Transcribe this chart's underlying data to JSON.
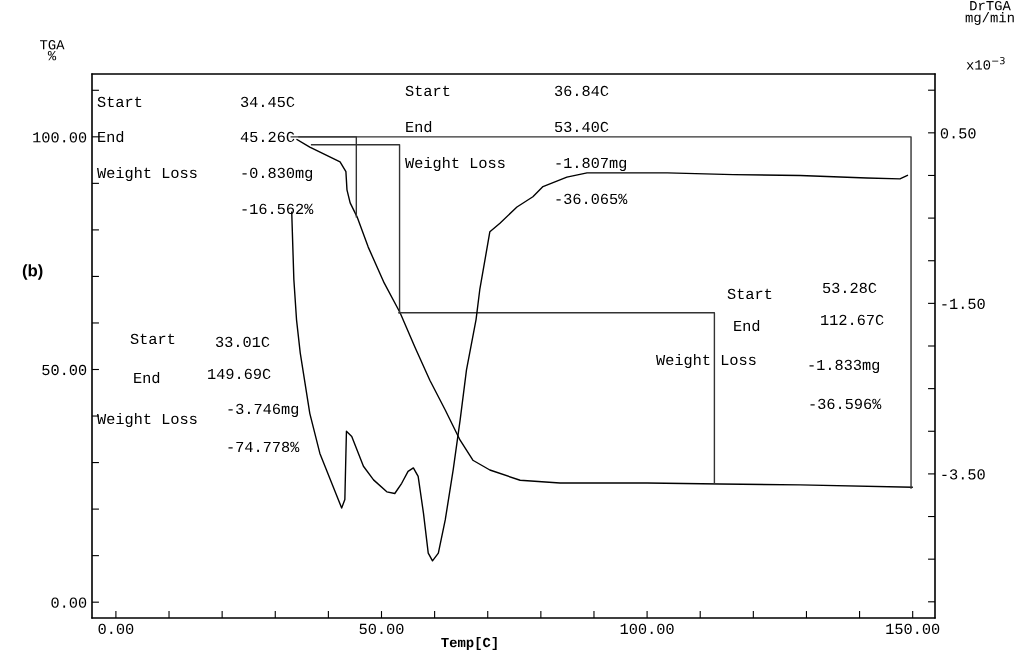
{
  "chart_data": {
    "type": "line",
    "xlabel": "Temp[C]",
    "ylabel": "TGA\n%",
    "y2label": "DrTGA\nmg/min",
    "xlim": [
      -4.5,
      154.2
    ],
    "ylim": [
      -3.4,
      113.5
    ],
    "y2lim": [
      -5.19,
      1.19
    ],
    "xticks": [
      {
        "value": 0,
        "label": "0.00"
      },
      {
        "value": 10,
        "label": null
      },
      {
        "value": 20,
        "label": null
      },
      {
        "value": 30,
        "label": null
      },
      {
        "value": 40,
        "label": null
      },
      {
        "value": 50,
        "label": "50.00"
      },
      {
        "value": 60,
        "label": null
      },
      {
        "value": 70,
        "label": null
      },
      {
        "value": 80,
        "label": null
      },
      {
        "value": 90,
        "label": null
      },
      {
        "value": 100,
        "label": "100.00"
      },
      {
        "value": 110,
        "label": null
      },
      {
        "value": 120,
        "label": null
      },
      {
        "value": 130,
        "label": null
      },
      {
        "value": 140,
        "label": null
      },
      {
        "value": 150,
        "label": "150.00"
      }
    ],
    "yticks": [
      {
        "value": 0,
        "label": "0.00"
      },
      {
        "value": 10,
        "label": null
      },
      {
        "value": 20,
        "label": null
      },
      {
        "value": 30,
        "label": null
      },
      {
        "value": 40,
        "label": null
      },
      {
        "value": 50,
        "label": "50.00"
      },
      {
        "value": 60,
        "label": null
      },
      {
        "value": 70,
        "label": null
      },
      {
        "value": 80,
        "label": null
      },
      {
        "value": 90,
        "label": null
      },
      {
        "value": 100,
        "label": "100.00"
      },
      {
        "value": 110,
        "label": null
      }
    ],
    "y2ticks": [
      {
        "value": -5.0,
        "label": null
      },
      {
        "value": -4.5,
        "label": null
      },
      {
        "value": -4.0,
        "label": null
      },
      {
        "value": -3.5,
        "label": "-3.50"
      },
      {
        "value": -3.0,
        "label": null
      },
      {
        "value": -2.5,
        "label": null
      },
      {
        "value": -2.0,
        "label": null
      },
      {
        "value": -1.5,
        "label": "-1.50"
      },
      {
        "value": -1.0,
        "label": null
      },
      {
        "value": -0.5,
        "label": null
      },
      {
        "value": 0.0,
        "label": null
      },
      {
        "value": 0.5,
        "label": "0.50"
      },
      {
        "value": 1.0,
        "label": null
      }
    ],
    "grid": false,
    "legend": false,
    "marker": "none",
    "line_style": "solid",
    "series": [
      {
        "color": "#000000",
        "x": [
          34.1,
          36.5,
          42.2,
          43.3,
          43.5,
          44.1,
          45.4,
          47.5,
          50.5,
          53.5,
          56.3,
          59.1,
          62.0,
          64.8,
          67.2,
          70.4,
          76.1,
          83.6,
          100,
          113.7,
          128.8,
          149.9
        ],
        "values": [
          99.4,
          97.8,
          94.6,
          92.5,
          88.6,
          85.8,
          82.8,
          76.3,
          68.6,
          62.2,
          54.8,
          47.7,
          41.3,
          34.8,
          30.5,
          28.4,
          26.2,
          25.6,
          25.6,
          25.4,
          25.2,
          24.7
        ]
      },
      {
        "color": "#000000",
        "axis": "y2",
        "x": [
          33.1,
          33.5,
          34.0,
          34.7,
          36.5,
          38.4,
          40.9,
          42.5,
          43.1,
          43.3,
          43.4,
          44.4,
          46.6,
          48.5,
          51.0,
          52.5,
          53.8,
          55.0,
          56.0,
          56.9,
          57.9,
          58.8,
          59.6,
          60.7,
          62.0,
          63.5,
          64.8,
          66.0,
          67.8,
          68.5,
          70.4,
          72.3,
          75.5,
          78.5,
          80.4,
          84.9,
          88.7,
          94.4,
          103.8,
          116.2,
          128.8,
          141.4,
          147.6,
          149.0
        ],
        "values": [
          -0.43,
          -1.22,
          -1.69,
          -2.08,
          -2.79,
          -3.26,
          -3.65,
          -3.9,
          -3.8,
          -3.26,
          -3.0,
          -3.06,
          -3.41,
          -3.57,
          -3.71,
          -3.73,
          -3.61,
          -3.47,
          -3.43,
          -3.53,
          -3.96,
          -4.43,
          -4.52,
          -4.43,
          -4.04,
          -3.45,
          -2.87,
          -2.28,
          -1.69,
          -1.34,
          -0.66,
          -0.56,
          -0.37,
          -0.25,
          -0.13,
          -0.02,
          0.03,
          0.03,
          0.03,
          0.01,
          0.0,
          -0.03,
          -0.04,
          0.0
        ]
      },
      {
        "color": "#333333",
        "x": [
          34.45,
          45.26,
          45.26
        ],
        "values": [
          100.0,
          100.0,
          82.8
        ]
      },
      {
        "color": "#333333",
        "x": [
          36.84,
          53.4,
          53.4
        ],
        "values": [
          98.3,
          98.3,
          62.2
        ]
      },
      {
        "color": "#333333",
        "x": [
          53.28,
          112.67,
          112.67
        ],
        "values": [
          62.2,
          62.2,
          25.6
        ]
      },
      {
        "color": "#333333",
        "x": [
          33.01,
          149.69,
          149.69
        ],
        "values": [
          100.0,
          100.0,
          24.5
        ]
      }
    ],
    "annotations": [
      "Start",
      "34.45C",
      "End",
      "45.26C",
      "Weight Loss",
      "-0.830mg",
      "-16.562%",
      "Start",
      "36.84C",
      "End",
      "53.40C",
      "Weight Loss",
      "-1.807mg",
      "-36.065%",
      "Start",
      "53.28C",
      "End",
      "112.67C",
      "Weight Loss",
      "-1.833mg",
      "-36.596%",
      "Start",
      "33.01C",
      "End",
      "149.69C",
      "Weight Loss",
      "-3.746mg",
      "-74.778%",
      "(b)",
      "x10$^{−3}$"
    ]
  }
}
